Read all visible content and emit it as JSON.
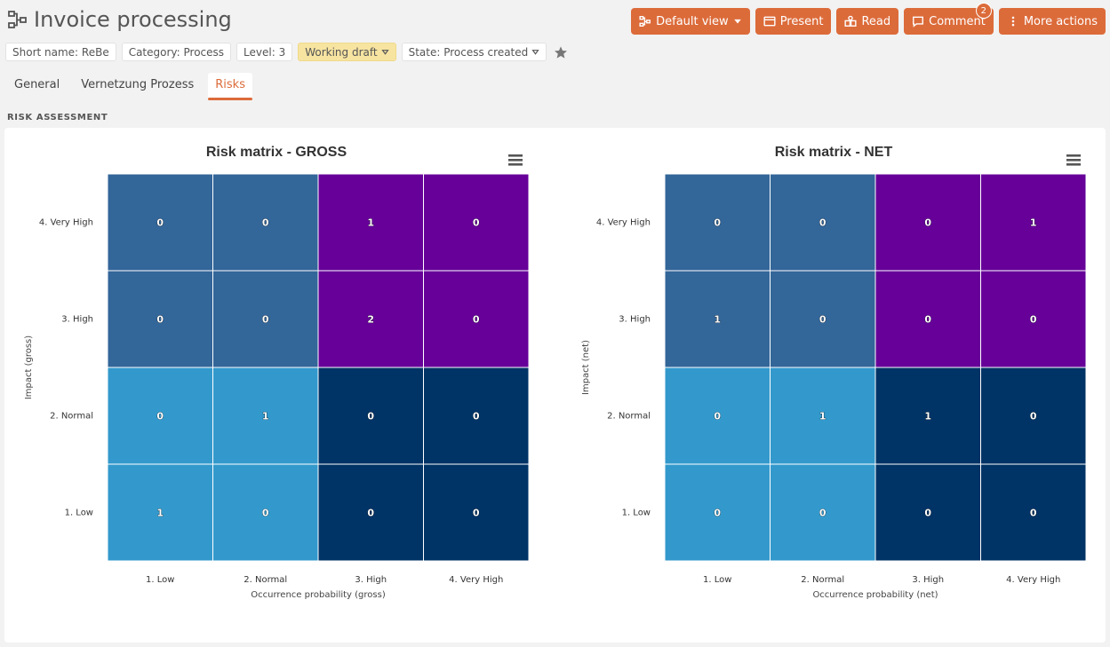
{
  "header": {
    "title": "Invoice processing",
    "title_icon": "process-map-icon",
    "actions": [
      {
        "label": "Default view",
        "icon": "process-map-icon",
        "dropdown": true
      },
      {
        "label": "Present",
        "icon": "window-icon"
      },
      {
        "label": "Read",
        "icon": "read-icon"
      },
      {
        "label": "Comment",
        "icon": "comment-icon",
        "badge": "2"
      },
      {
        "label": "More actions",
        "icon": "more-vertical-icon"
      }
    ]
  },
  "tags": {
    "short_name": "Short name: ReBe",
    "category": "Category: Process",
    "level": "Level: 3",
    "status": "Working draft",
    "state": "State: Process created"
  },
  "tabs": [
    "General",
    "Vernetzung Prozess",
    "Risks"
  ],
  "active_tab": "Risks",
  "section_label": "RISK ASSESSMENT",
  "colors": {
    "accent": "#dc6b3a",
    "matrix_low": "#3399cc",
    "matrix_medium": "#336699",
    "matrix_high": "#660099",
    "matrix_low_dark": "#003366"
  },
  "chart_data": [
    {
      "type": "heatmap",
      "title": "Risk matrix - GROSS",
      "xlabel": "Occurrence probability (gross)",
      "ylabel": "Impact (gross)",
      "x_categories": [
        "1. Low",
        "2. Normal",
        "3. High",
        "4. Very High"
      ],
      "y_categories": [
        "4. Very High",
        "3. High",
        "2. Normal",
        "1. Low"
      ],
      "values": [
        [
          0,
          0,
          1,
          0
        ],
        [
          0,
          0,
          2,
          0
        ],
        [
          0,
          1,
          0,
          0
        ],
        [
          1,
          0,
          0,
          0
        ]
      ],
      "cell_colors": [
        [
          "#336699",
          "#336699",
          "#660099",
          "#660099"
        ],
        [
          "#336699",
          "#336699",
          "#660099",
          "#660099"
        ],
        [
          "#3399cc",
          "#3399cc",
          "#003366",
          "#003366"
        ],
        [
          "#3399cc",
          "#3399cc",
          "#003366",
          "#003366"
        ]
      ]
    },
    {
      "type": "heatmap",
      "title": "Risk matrix - NET",
      "xlabel": "Occurrence probability (net)",
      "ylabel": "Impact (net)",
      "x_categories": [
        "1. Low",
        "2. Normal",
        "3. High",
        "4. Very High"
      ],
      "y_categories": [
        "4. Very High",
        "3. High",
        "2. Normal",
        "1. Low"
      ],
      "values": [
        [
          0,
          0,
          0,
          1
        ],
        [
          1,
          0,
          0,
          0
        ],
        [
          0,
          1,
          1,
          0
        ],
        [
          0,
          0,
          0,
          0
        ]
      ],
      "cell_colors": [
        [
          "#336699",
          "#336699",
          "#660099",
          "#660099"
        ],
        [
          "#336699",
          "#336699",
          "#660099",
          "#660099"
        ],
        [
          "#3399cc",
          "#3399cc",
          "#003366",
          "#003366"
        ],
        [
          "#3399cc",
          "#3399cc",
          "#003366",
          "#003366"
        ]
      ]
    }
  ]
}
